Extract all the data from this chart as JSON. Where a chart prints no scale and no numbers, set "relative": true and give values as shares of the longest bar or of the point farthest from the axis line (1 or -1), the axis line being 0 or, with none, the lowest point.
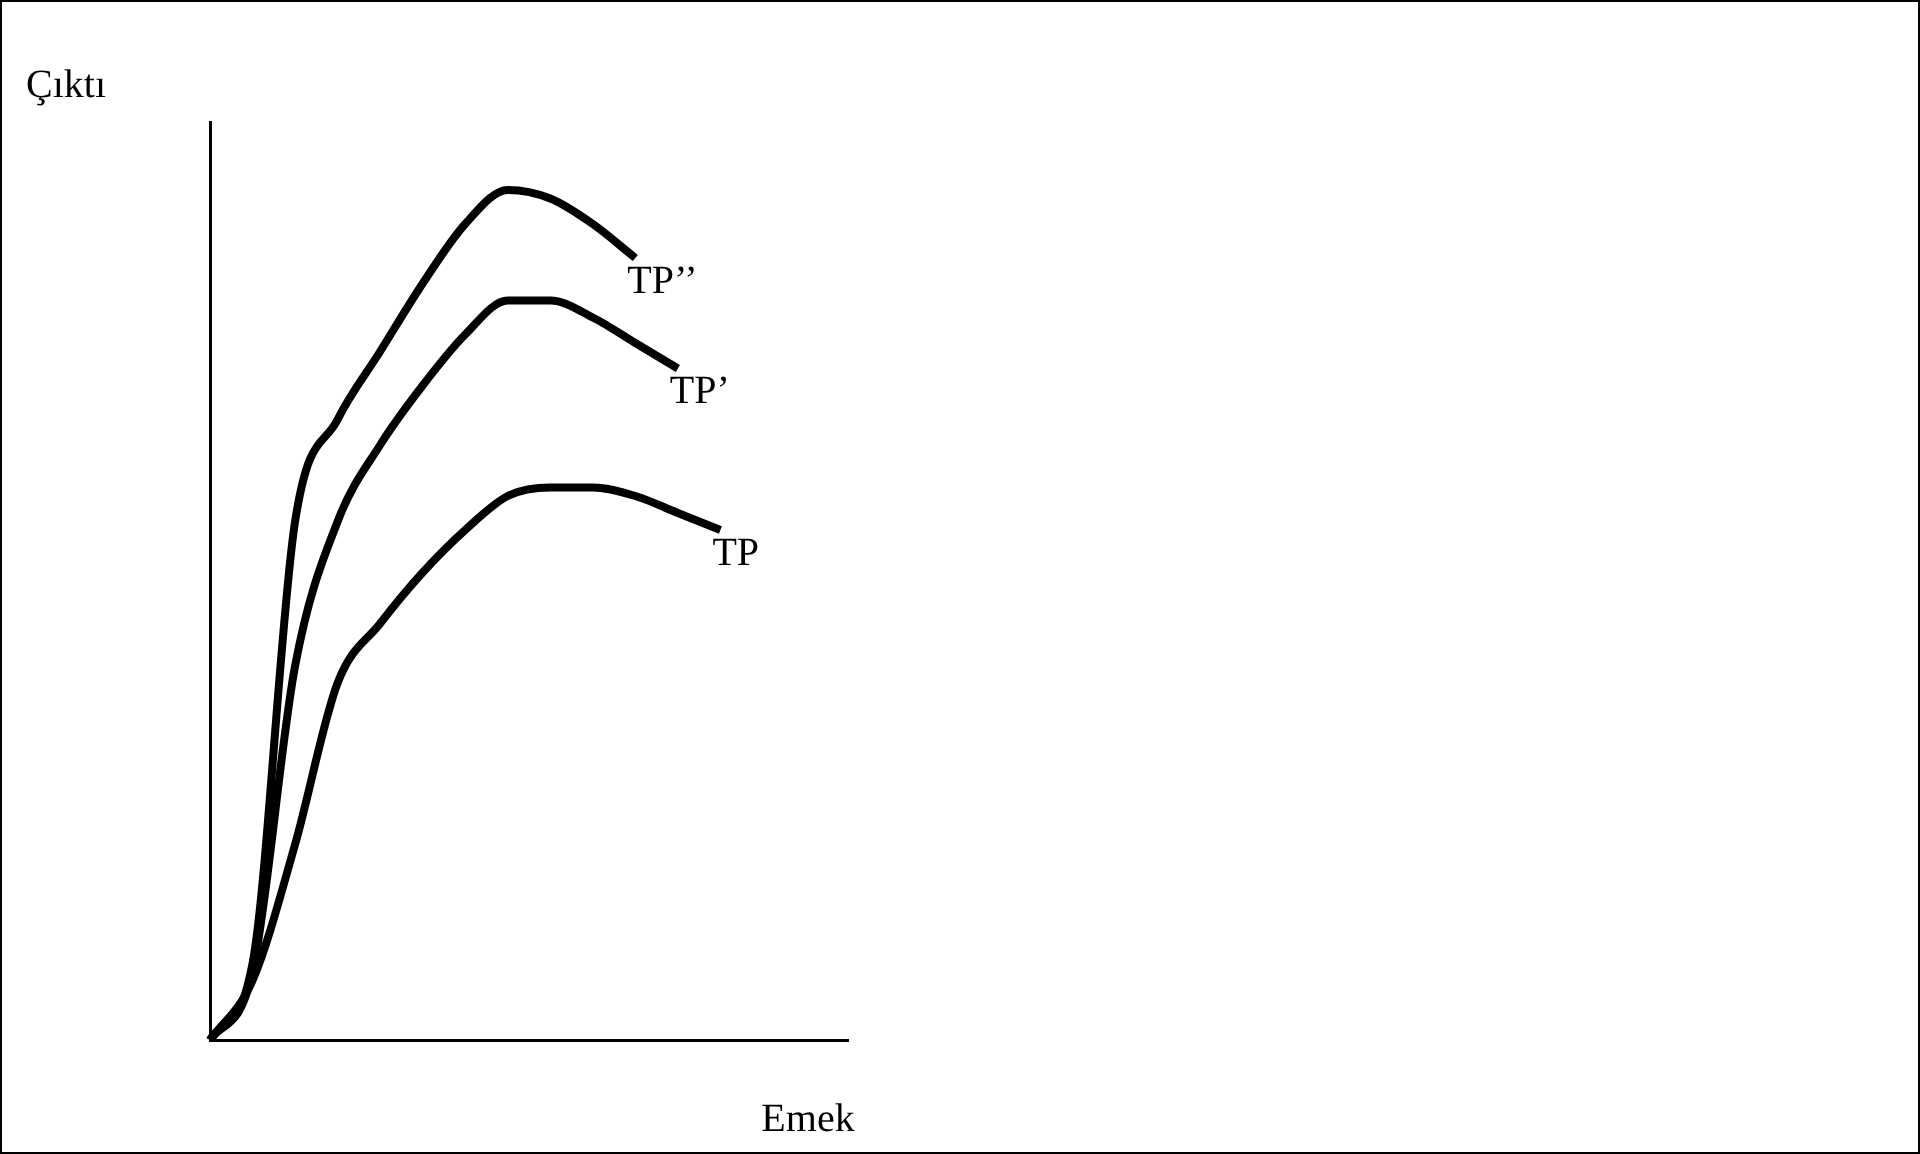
{
  "chart_data": {
    "type": "line",
    "relative": true,
    "xlabel": "Emek",
    "ylabel": "Çıktı",
    "legend": false,
    "grid": false,
    "marker": "none",
    "line_style": "solid",
    "tick_labels": false,
    "categories": [
      null,
      null,
      null,
      null,
      null,
      null,
      null,
      null,
      null,
      null,
      null,
      null,
      null,
      null,
      null,
      null
    ],
    "series": [
      {
        "name": "TP’’",
        "color": "#000000",
        "values": [
          0,
          0.09,
          0.61,
          0.73,
          0.81,
          0.89,
          0.96,
          1.0,
          0.99,
          0.96,
          0.92,
          null,
          null,
          null,
          null,
          null
        ]
      },
      {
        "name": "TP’",
        "color": "#000000",
        "values": [
          0,
          0.08,
          0.44,
          0.61,
          0.7,
          0.77,
          0.83,
          0.87,
          0.87,
          0.85,
          0.82,
          0.79,
          null,
          null,
          null,
          null
        ]
      },
      {
        "name": "TP",
        "color": "#000000",
        "values": [
          0,
          0.07,
          0.23,
          0.42,
          0.49,
          0.55,
          0.6,
          0.64,
          0.65,
          0.65,
          0.64,
          0.62,
          0.6,
          null,
          null,
          null
        ]
      }
    ]
  }
}
